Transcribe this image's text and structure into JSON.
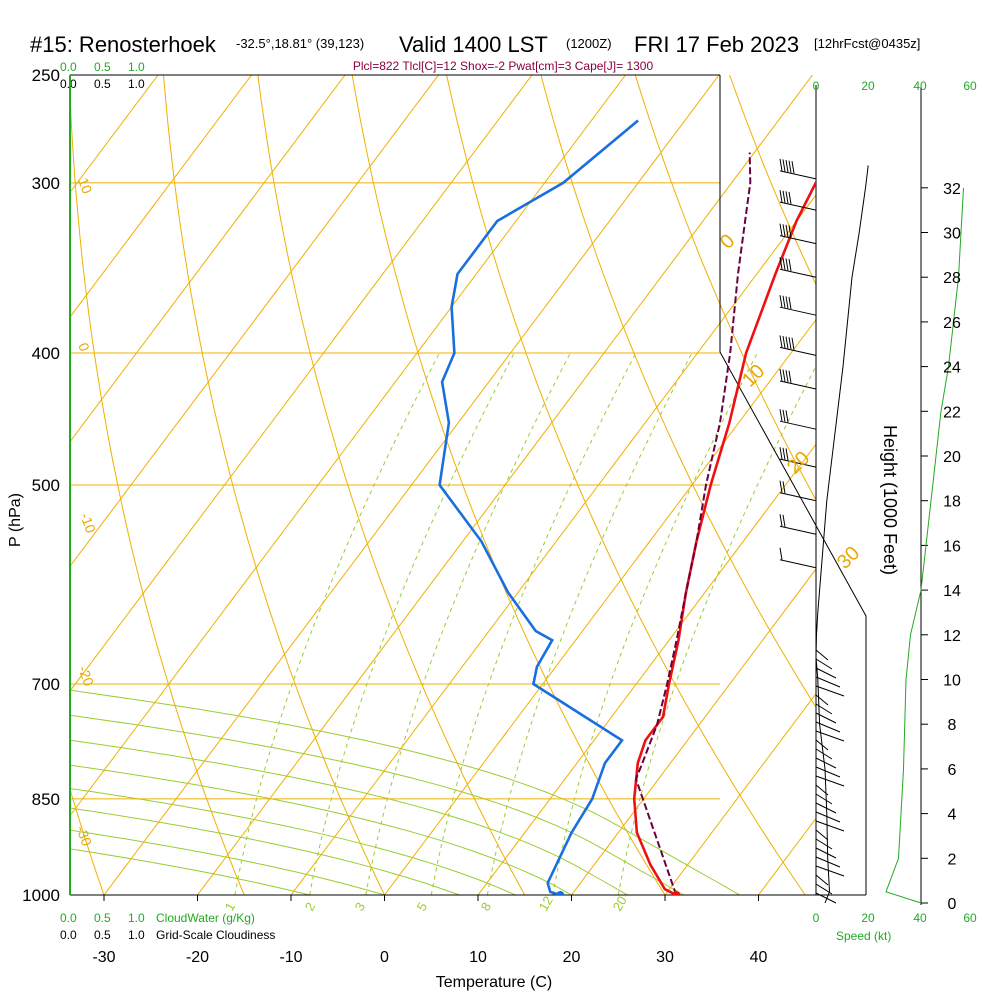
{
  "header": {
    "station": "#15: Renosterhoek",
    "coords": "-32.5°,18.81° (39,123)",
    "valid": "Valid 1400 LST",
    "zulu": "(1200Z)",
    "date": "FRI 17 Feb 2023",
    "forecast": "[12hrFcst@0435z]",
    "indices": "Plcl=822 Tlcl[C]=12 Shox=-2 Pwat[cm]=3 Cape[J]= 1300"
  },
  "cloud_scale": {
    "green_ticks": [
      "0.0",
      "0.5",
      "1.0"
    ],
    "black_ticks": [
      "0.0",
      "0.5",
      "1.0"
    ],
    "cloudwater_label": "CloudWater (g/Kg)",
    "cloudiness_label": "Grid-Scale Cloudiness"
  },
  "chart_data": {
    "type": "line",
    "xlabel": "Temperature (C)",
    "ylabel": "P (hPa)",
    "y2label": "Height (1000 Feet)",
    "speed_label": "Speed (kt)",
    "x_ticks": [
      -30,
      -20,
      -10,
      0,
      10,
      20,
      30,
      40
    ],
    "pressure_ticks": [
      250,
      300,
      400,
      500,
      700,
      850,
      1000
    ],
    "height_ticks": [
      0,
      2,
      4,
      6,
      8,
      10,
      12,
      14,
      16,
      18,
      20,
      22,
      24,
      26,
      28,
      30,
      32
    ],
    "speed_ticks_top": [
      "0",
      "20",
      "40",
      "60"
    ],
    "speed_ticks_bottom": [
      "0",
      "20",
      "40",
      "60"
    ],
    "isotherm_labels": [
      "10",
      "0",
      "-10",
      "-20",
      "-30"
    ],
    "adiabat_labels": [
      "0",
      "10",
      "20",
      "30"
    ],
    "mixing_ratio_labels": [
      "1",
      "2",
      "3",
      "5",
      "8",
      "12",
      "20"
    ],
    "series": [
      {
        "key": "temperature",
        "color": "#ee1111",
        "points": [
          [
            1000,
            31.2
          ],
          [
            990,
            29.5
          ],
          [
            950,
            26
          ],
          [
            900,
            22
          ],
          [
            850,
            19
          ],
          [
            800,
            16.5
          ],
          [
            770,
            15.5
          ],
          [
            740,
            15.5
          ],
          [
            700,
            13.5
          ],
          [
            650,
            11
          ],
          [
            600,
            8
          ],
          [
            550,
            5
          ],
          [
            500,
            2
          ],
          [
            450,
            -1
          ],
          [
            400,
            -4.8
          ],
          [
            350,
            -8
          ],
          [
            320,
            -10
          ],
          [
            300,
            -11
          ],
          [
            285,
            -11.5
          ],
          [
            270,
            -12
          ]
        ]
      },
      {
        "key": "dewpoint",
        "color": "#1a6fe0",
        "points": [
          [
            1000,
            18.8
          ],
          [
            995,
            17.5
          ],
          [
            980,
            16.5
          ],
          [
            900,
            15
          ],
          [
            850,
            14.5
          ],
          [
            800,
            13
          ],
          [
            770,
            13
          ],
          [
            700,
            -1
          ],
          [
            680,
            -2
          ],
          [
            650,
            -2.5
          ],
          [
            640,
            -5
          ],
          [
            600,
            -11
          ],
          [
            550,
            -18
          ],
          [
            500,
            -27
          ],
          [
            450,
            -31
          ],
          [
            420,
            -35
          ],
          [
            400,
            -36
          ],
          [
            370,
            -40
          ],
          [
            350,
            -42
          ],
          [
            320,
            -42
          ],
          [
            300,
            -38
          ],
          [
            270,
            -35
          ]
        ]
      },
      {
        "key": "parcel",
        "color": "#6a0040",
        "points": [
          [
            1000,
            31.2
          ],
          [
            822,
            17.6
          ],
          [
            800,
            17
          ],
          [
            750,
            15.5
          ],
          [
            700,
            13.3
          ],
          [
            650,
            10.8
          ],
          [
            600,
            8
          ],
          [
            550,
            5
          ],
          [
            500,
            1.5
          ],
          [
            450,
            -2
          ],
          [
            400,
            -6.5
          ],
          [
            350,
            -12
          ],
          [
            320,
            -15.5
          ],
          [
            300,
            -18
          ],
          [
            285,
            -20.5
          ]
        ]
      },
      {
        "key": "height_profile",
        "color": "#22aa22",
        "points": [
          [
            0,
            42
          ],
          [
            0.5,
            28
          ],
          [
            2,
            33
          ],
          [
            6,
            35
          ],
          [
            10,
            36
          ],
          [
            12,
            37.8
          ],
          [
            14,
            42
          ],
          [
            18,
            46
          ],
          [
            22,
            50
          ],
          [
            24,
            53
          ],
          [
            28,
            57
          ],
          [
            32,
            59
          ]
        ]
      }
    ],
    "surface_markers": [
      {
        "key": "surface-temp",
        "p": 1000,
        "t": 31.2,
        "color": "#ee1111"
      },
      {
        "key": "surface-dew",
        "p": 1000,
        "t": 18.8,
        "color": "#1a6fe0"
      }
    ],
    "wind_barbs": [
      {
        "h": 32.4,
        "speed": 50
      },
      {
        "h": 31,
        "speed": 35
      },
      {
        "h": 29.5,
        "speed": 35
      },
      {
        "h": 28,
        "speed": 40
      },
      {
        "h": 26.3,
        "speed": 40
      },
      {
        "h": 24.5,
        "speed": 45
      },
      {
        "h": 23,
        "speed": 40
      },
      {
        "h": 21.2,
        "speed": 30
      },
      {
        "h": 19.5,
        "speed": 25
      },
      {
        "h": 18,
        "speed": 20
      },
      {
        "h": 16.5,
        "speed": 15
      },
      {
        "h": 15,
        "speed": 10
      }
    ],
    "speed_profile": [
      [
        0,
        10
      ],
      [
        0.5,
        15
      ],
      [
        2,
        13
      ],
      [
        4,
        12
      ],
      [
        6,
        10
      ],
      [
        8,
        4
      ],
      [
        10,
        2
      ],
      [
        11,
        0
      ],
      [
        12,
        0.5
      ],
      [
        13,
        2
      ],
      [
        14,
        4
      ],
      [
        16,
        8
      ],
      [
        18,
        12
      ],
      [
        20,
        18
      ],
      [
        22,
        24
      ],
      [
        24,
        30
      ],
      [
        26,
        35
      ],
      [
        28,
        40
      ],
      [
        30,
        48
      ],
      [
        32,
        55
      ],
      [
        33,
        58
      ]
    ]
  }
}
